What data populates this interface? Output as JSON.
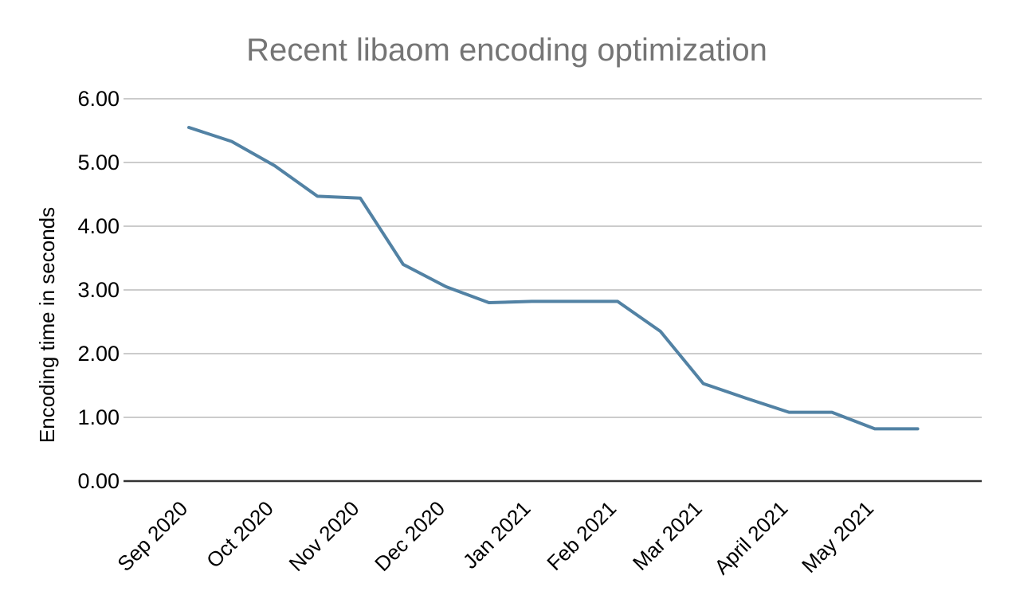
{
  "page": {
    "background_color": "#ffffff"
  },
  "chart_data": {
    "type": "line",
    "title": "Recent libaom encoding optimization",
    "title_color": "#757575",
    "xlabel": "",
    "ylabel": "Encoding time in seconds",
    "ylim": [
      0,
      6
    ],
    "ytick_interval": 1,
    "ytick_labels": [
      "0.00",
      "1.00",
      "2.00",
      "3.00",
      "4.00",
      "5.00",
      "6.00"
    ],
    "x_tick_labels": [
      "Sep 2020",
      "Oct 2020",
      "Nov 2020",
      "Dec 2020",
      "Jan 2021",
      "Feb 2021",
      "Mar 2021",
      "April 2021",
      "May 2021"
    ],
    "x_points_per_tick": 2,
    "grid": true,
    "gridline_color": "#cccccc",
    "axis_line_color": "#333333",
    "tick_label_color": "#000000",
    "legend": "none",
    "series": [
      {
        "color": "#5282a4",
        "values": [
          5.55,
          5.33,
          4.95,
          4.47,
          4.44,
          3.4,
          3.05,
          2.8,
          2.82,
          2.82,
          2.82,
          2.35,
          1.53,
          1.3,
          1.08,
          1.08,
          0.82,
          0.82
        ]
      }
    ]
  }
}
